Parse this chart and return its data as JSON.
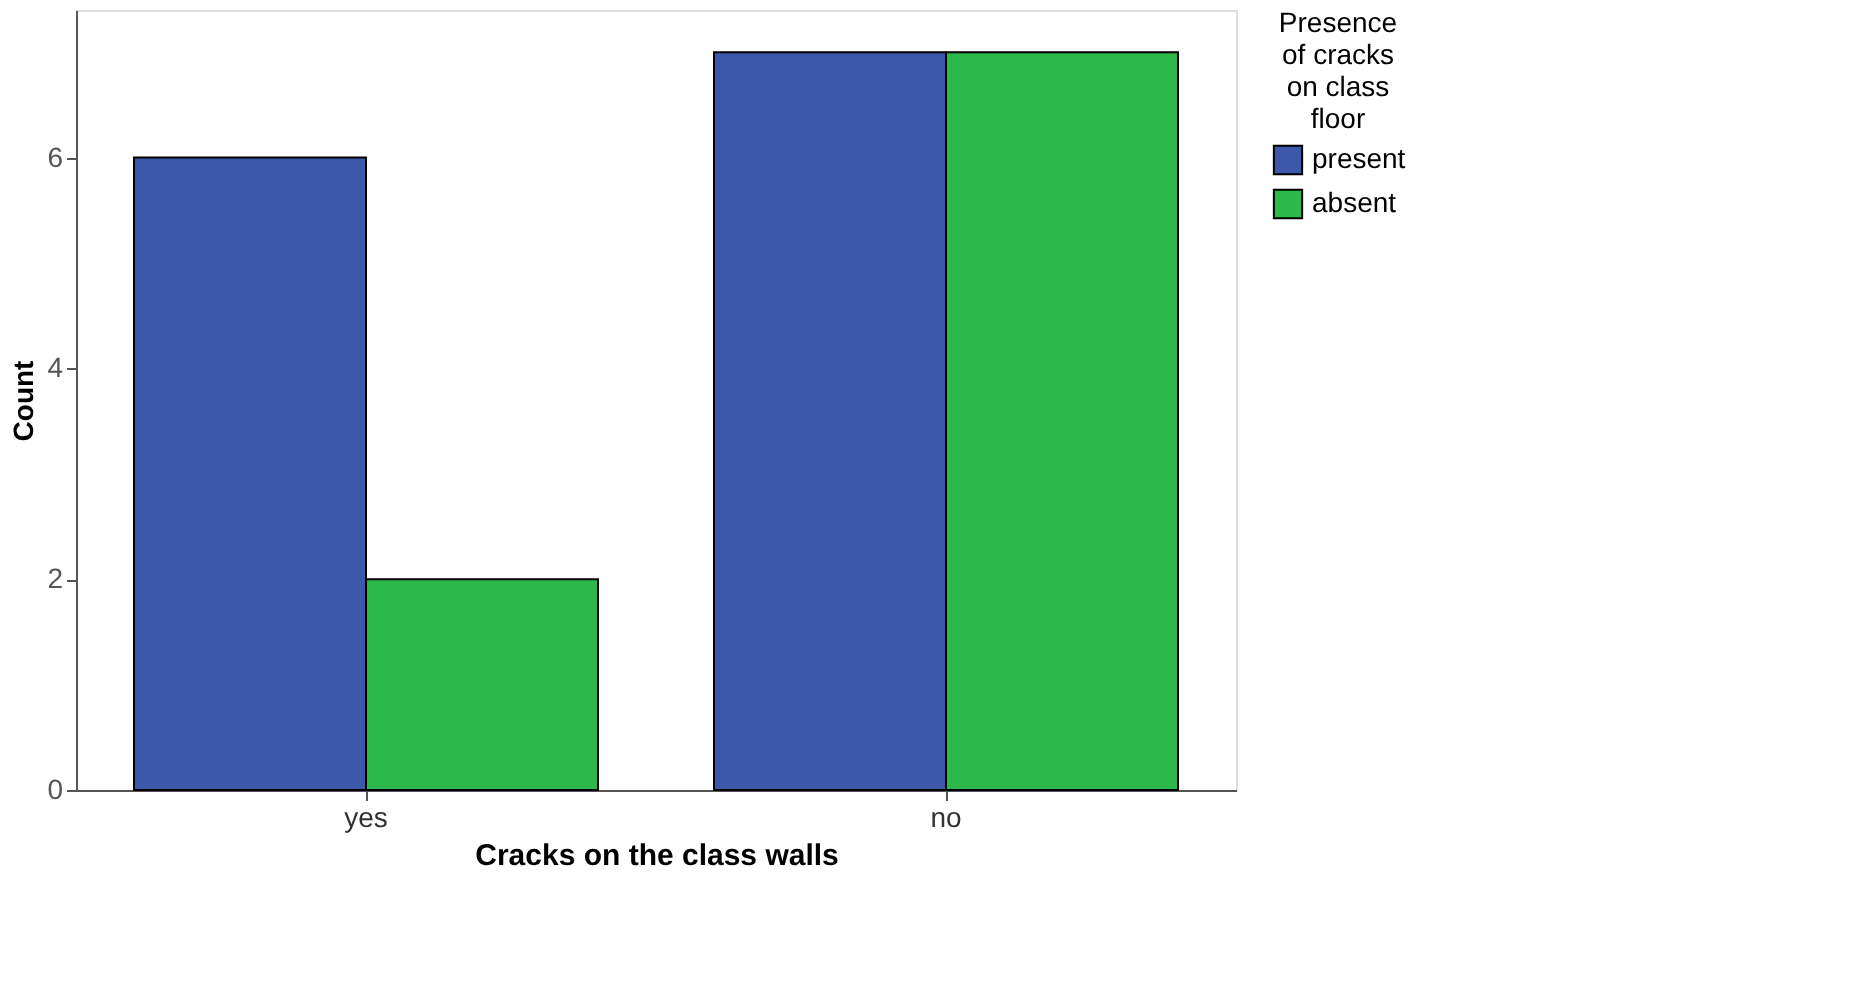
{
  "chart_data": {
    "type": "bar",
    "xlabel": "Cracks on the class walls",
    "ylabel": "Count",
    "legend_title": "Presence of cracks on class floor",
    "categories": [
      "yes",
      "no"
    ],
    "series": [
      {
        "name": "present",
        "color": "#3c58a8",
        "values": [
          6,
          7
        ]
      },
      {
        "name": "absent",
        "color": "#2db84a",
        "values": [
          2,
          7
        ]
      }
    ],
    "ylim": [
      0,
      7.4
    ],
    "yticks": [
      0,
      2,
      4,
      6
    ],
    "grid": false,
    "legend": "right"
  }
}
